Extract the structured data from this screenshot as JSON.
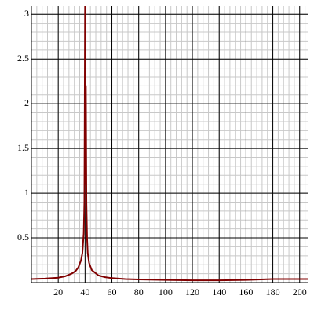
{
  "chart_data": {
    "type": "line",
    "x": [
      0,
      10,
      20,
      25,
      30,
      33,
      35,
      37,
      38,
      39,
      39.5,
      40,
      40.3,
      40.6,
      41,
      41.5,
      42,
      43,
      45,
      50,
      55,
      60,
      70,
      80,
      100,
      120,
      140,
      160,
      180,
      200,
      206
    ],
    "series": [
      {
        "color": "#800000",
        "values": [
          0.04,
          0.045,
          0.055,
          0.07,
          0.1,
          0.13,
          0.17,
          0.25,
          0.33,
          0.55,
          0.9,
          3.09,
          1.1,
          2.2,
          0.9,
          0.5,
          0.33,
          0.22,
          0.14,
          0.08,
          0.06,
          0.05,
          0.04,
          0.035,
          0.03,
          0.025,
          0.025,
          0.03,
          0.04,
          0.04,
          0.04
        ]
      }
    ],
    "xlim": [
      0,
      206
    ],
    "ylim": [
      0,
      3.09
    ],
    "xticks": [
      20,
      40,
      60,
      80,
      100,
      120,
      140,
      160,
      180,
      200
    ],
    "yticks": [
      0.5,
      1,
      1.5,
      2,
      2.5,
      3
    ],
    "grid": true,
    "minor_divisions": 5
  }
}
